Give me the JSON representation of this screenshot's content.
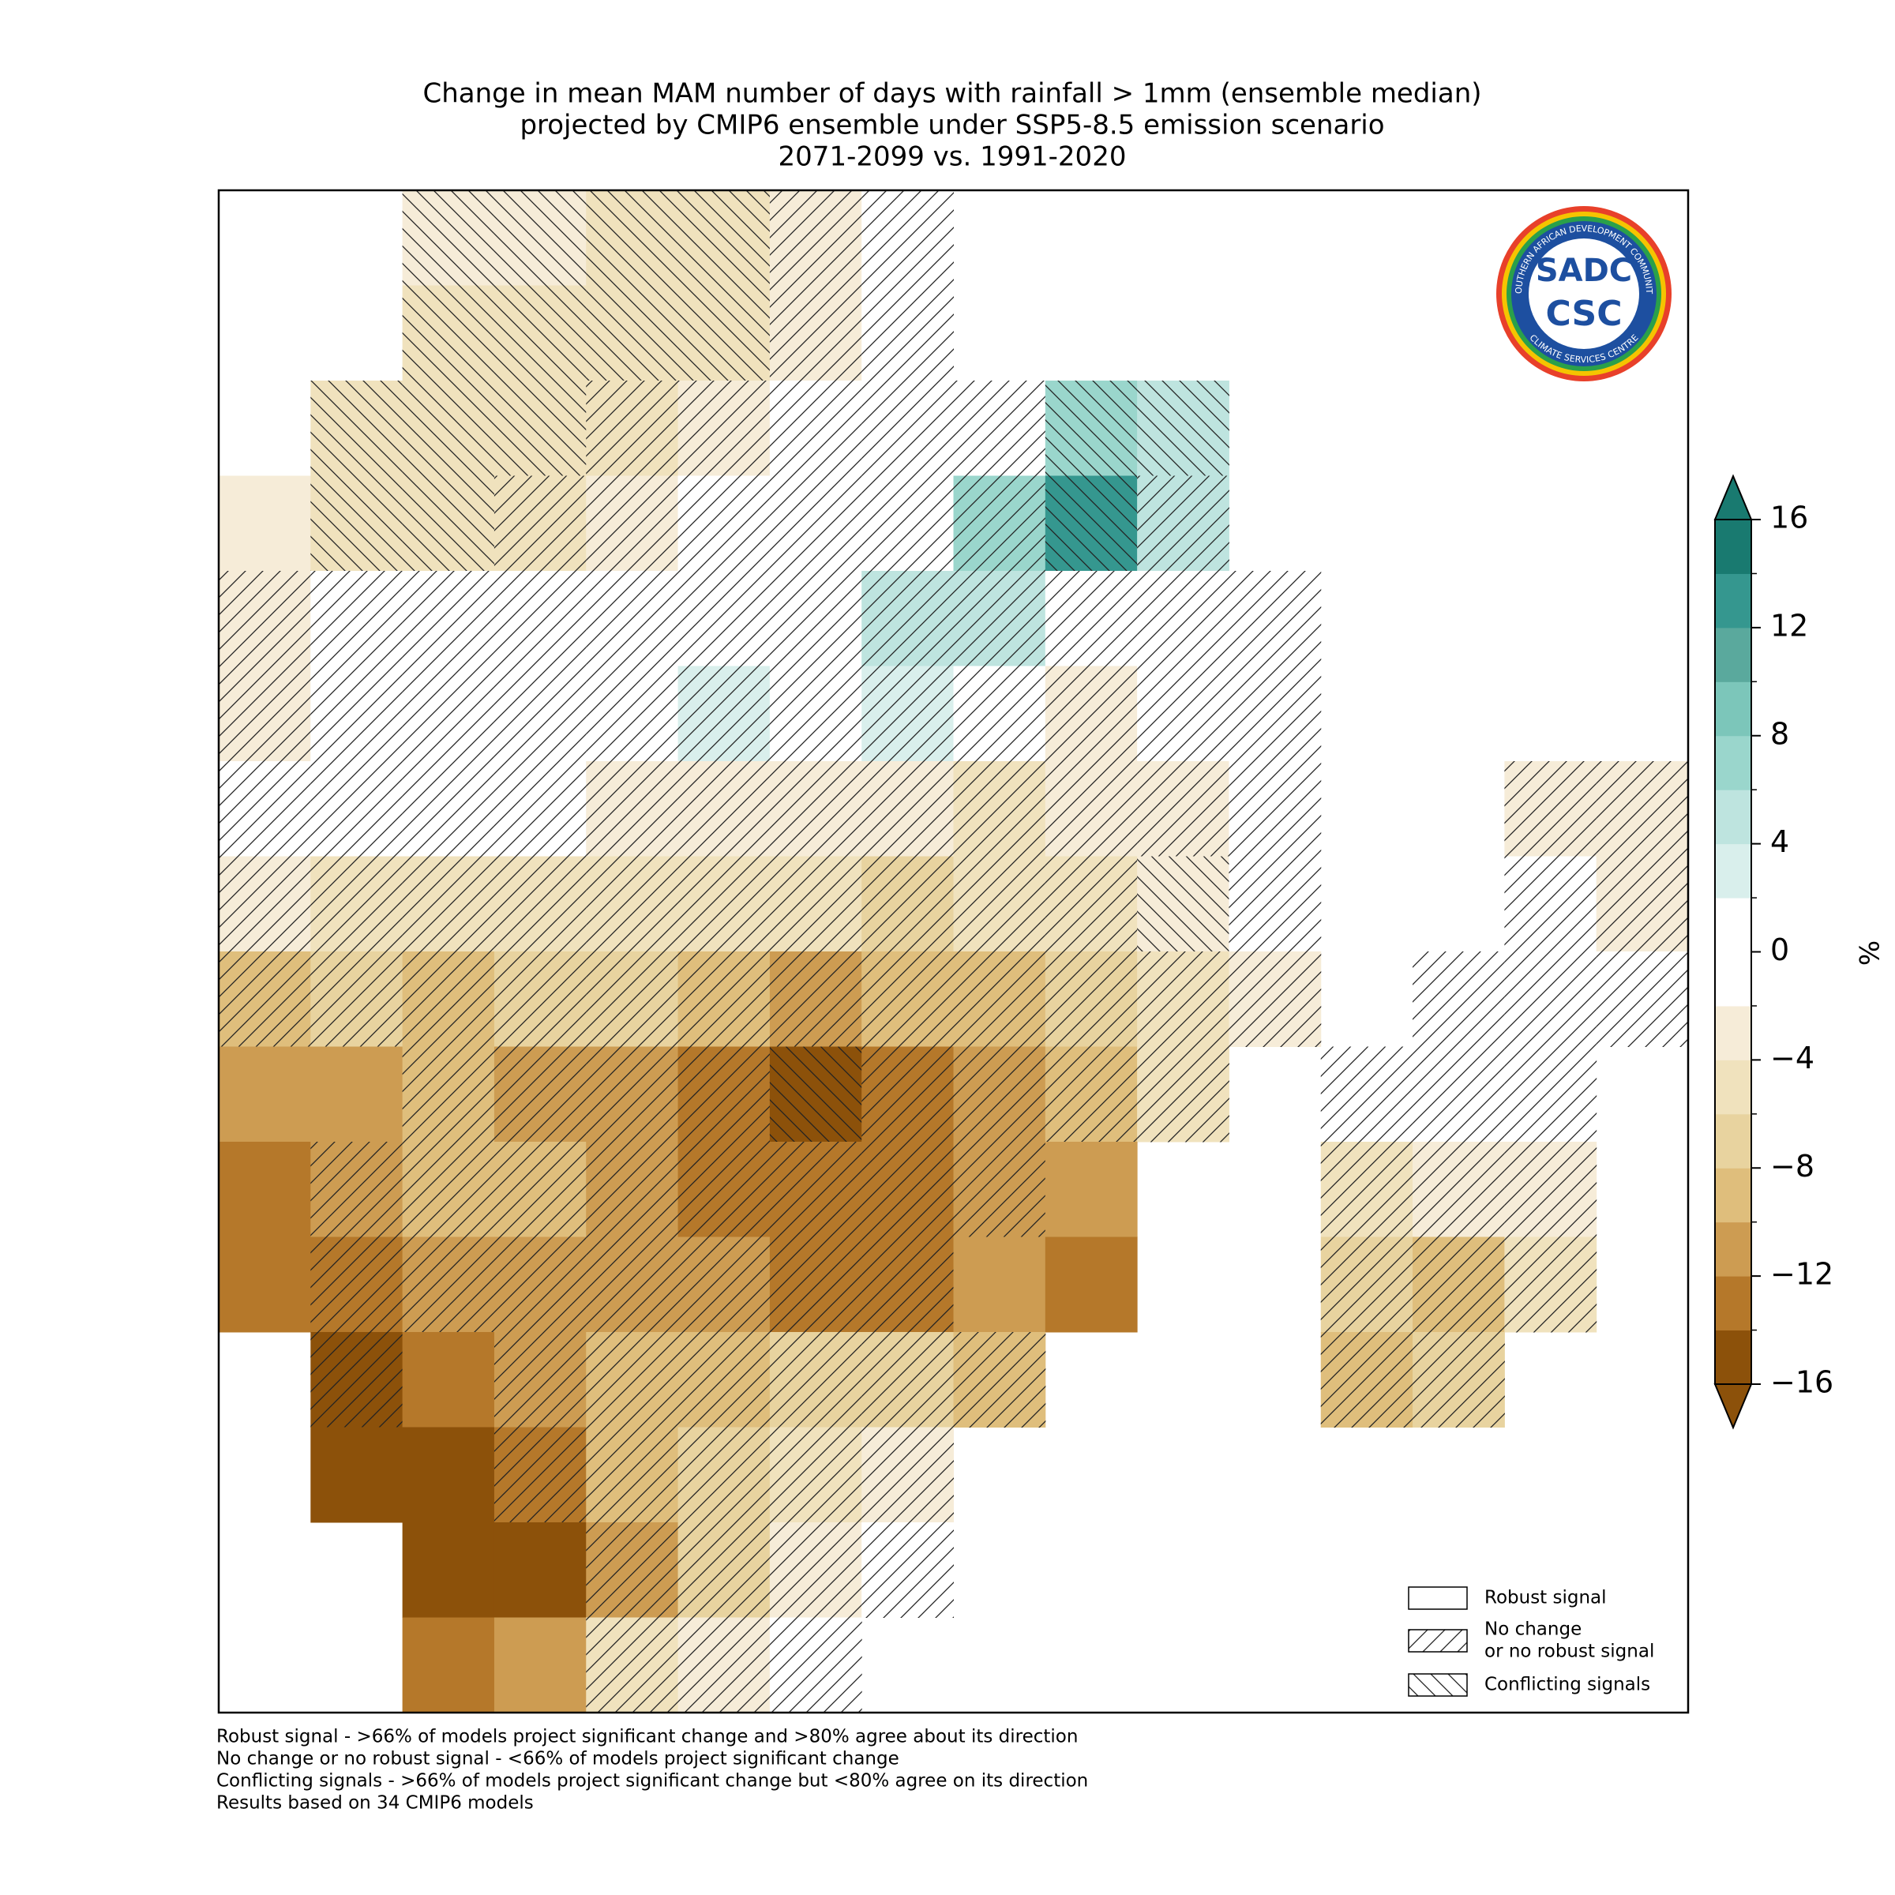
{
  "map": {
    "title": [
      "Change in mean MAM number of days with rainfall > 1mm (ensemble median)",
      "projected by CMIP6 ensemble under SSP5-8.5 emission scenario",
      "2071-2099 vs. 1991-2020"
    ],
    "grid": {
      "values": [
        [
          null,
          null,
          -3,
          -4,
          -5,
          -5,
          -4,
          0,
          null,
          null,
          null,
          null,
          null,
          null,
          null,
          null
        ],
        [
          null,
          null,
          -5,
          -6,
          -6,
          -5,
          -4,
          0,
          null,
          null,
          null,
          null,
          null,
          null,
          null,
          null
        ],
        [
          null,
          -5,
          -6,
          -6,
          -6,
          -4,
          -2,
          0,
          0,
          6,
          4,
          null,
          null,
          null,
          null,
          null
        ],
        [
          -4,
          -5,
          -6,
          -5,
          -4,
          -2,
          0,
          0,
          6,
          12,
          4,
          null,
          null,
          null,
          null,
          null
        ],
        [
          -3,
          -1,
          -1,
          0,
          0,
          0,
          0,
          4,
          4,
          0,
          0,
          0,
          null,
          null,
          null,
          null
        ],
        [
          -3,
          0,
          0,
          0,
          0,
          2,
          0,
          2,
          -1,
          -3,
          0,
          0,
          null,
          null,
          null,
          null
        ],
        [
          -1,
          0,
          0,
          0,
          -3,
          -3,
          -4,
          -4,
          -5,
          -4,
          -3,
          -1,
          null,
          null,
          -3,
          -3
        ],
        [
          -4,
          -5,
          -5,
          -5,
          -5,
          -5,
          -6,
          -7,
          -6,
          -5,
          -4,
          -2,
          null,
          null,
          -1,
          -3
        ],
        [
          -10,
          -8,
          -9,
          -8,
          -8,
          -9,
          -11,
          -10,
          -10,
          -8,
          -5,
          -4,
          null,
          -2,
          -1,
          -2
        ],
        [
          -12,
          -12,
          -10,
          -11,
          -12,
          -13,
          -15,
          -14,
          -12,
          -9,
          -6,
          null,
          0,
          -2,
          -2,
          null
        ],
        [
          -13,
          -12,
          -10,
          -9,
          -11,
          -13,
          -13,
          -13,
          -12,
          -12,
          null,
          null,
          -6,
          -4,
          -3,
          null
        ],
        [
          -14,
          -14,
          -11,
          -11,
          -11,
          -12,
          -13,
          -13,
          -12,
          -13,
          null,
          null,
          -8,
          -9,
          -5,
          null
        ],
        [
          null,
          -15,
          -14,
          -12,
          -10,
          -9,
          -8,
          -8,
          -10,
          null,
          null,
          null,
          -10,
          -8,
          null,
          null
        ],
        [
          null,
          -15,
          -15,
          -14,
          -10,
          -8,
          -5,
          -3,
          null,
          null,
          null,
          null,
          null,
          null,
          null,
          null
        ],
        [
          null,
          null,
          -16,
          -16,
          -12,
          -7,
          -3,
          0,
          null,
          null,
          null,
          null,
          null,
          null,
          null,
          null
        ],
        [
          null,
          null,
          -14,
          -12,
          -6,
          -4,
          -1,
          null,
          null,
          null,
          null,
          null,
          null,
          null,
          null,
          null
        ]
      ],
      "signal": [
        "rrccccnnrrrrrrrr",
        "rrccccnnrrrrrrrr",
        "rcccnnnnnccrrrrr",
        "rccnnnnnncnrrrrr",
        "nnnnnnnnnnnnrrrr",
        "nnnnnnnnnnnnrrrr",
        "nnnnnnnnnnnnrrnn",
        "nnnnnnnnnncnrrnn",
        "nnnnnnnnnnnnrnnn",
        "rrnnnncnnnnrnnnr",
        "rnnnnnnnnrrrnnnr",
        "rnnnnnnnrrrrnnnr",
        "rnrnnnnnnrrrnnrr",
        "rrrnnnnnnrrrrrrr",
        "rrrrnnnnrrrrrrrr",
        "rrrrnnnrrrrrrrrr"
      ]
    },
    "colorbar": {
      "levels": [
        -16,
        -14,
        -12,
        -10,
        -8,
        -6,
        -4,
        -2,
        0,
        2,
        4,
        6,
        8,
        10,
        12,
        14,
        16
      ],
      "colors": [
        "#8c510a",
        "#b5782a",
        "#cd9c52",
        "#dfbe7c",
        "#e8d39f",
        "#f0e2bd",
        "#f6ecd8",
        "#ffffff",
        "#ffffff",
        "#d9efec",
        "#bee4df",
        "#9ad6cc",
        "#7cc6ba",
        "#5aa99d",
        "#35978f",
        "#197a70"
      ],
      "under_color": "#8c510a",
      "over_color": "#197a70",
      "ticks": [
        {
          "value": -16,
          "label": "−16"
        },
        {
          "value": -12,
          "label": "−12"
        },
        {
          "value": -8,
          "label": "−8"
        },
        {
          "value": -4,
          "label": "−4"
        },
        0,
        4,
        8,
        12,
        16
      ],
      "label": "%"
    },
    "legend": [
      {
        "label": [
          "Robust signal"
        ],
        "hatch": "r"
      },
      {
        "label": [
          "No change",
          "or no robust signal"
        ],
        "hatch": "n"
      },
      {
        "label": [
          "Conflicting signals"
        ],
        "hatch": "c"
      }
    ],
    "footnotes": [
      "Robust signal - >66% of models project significant change and >80% agree about its direction",
      "No change or no robust signal - <66% of models project significant change",
      "Conflicting signals - >66% of models project significant change but <80% agree on its direction",
      "Results based on 34 CMIP6 models"
    ],
    "logo": {
      "top": "SOUTHERN AFRICAN DEVELOPMENT COMMUNITY",
      "bottom": "CLIMATE SERVICES CENTRE",
      "line1": "SADC",
      "line2": "CSC"
    }
  }
}
